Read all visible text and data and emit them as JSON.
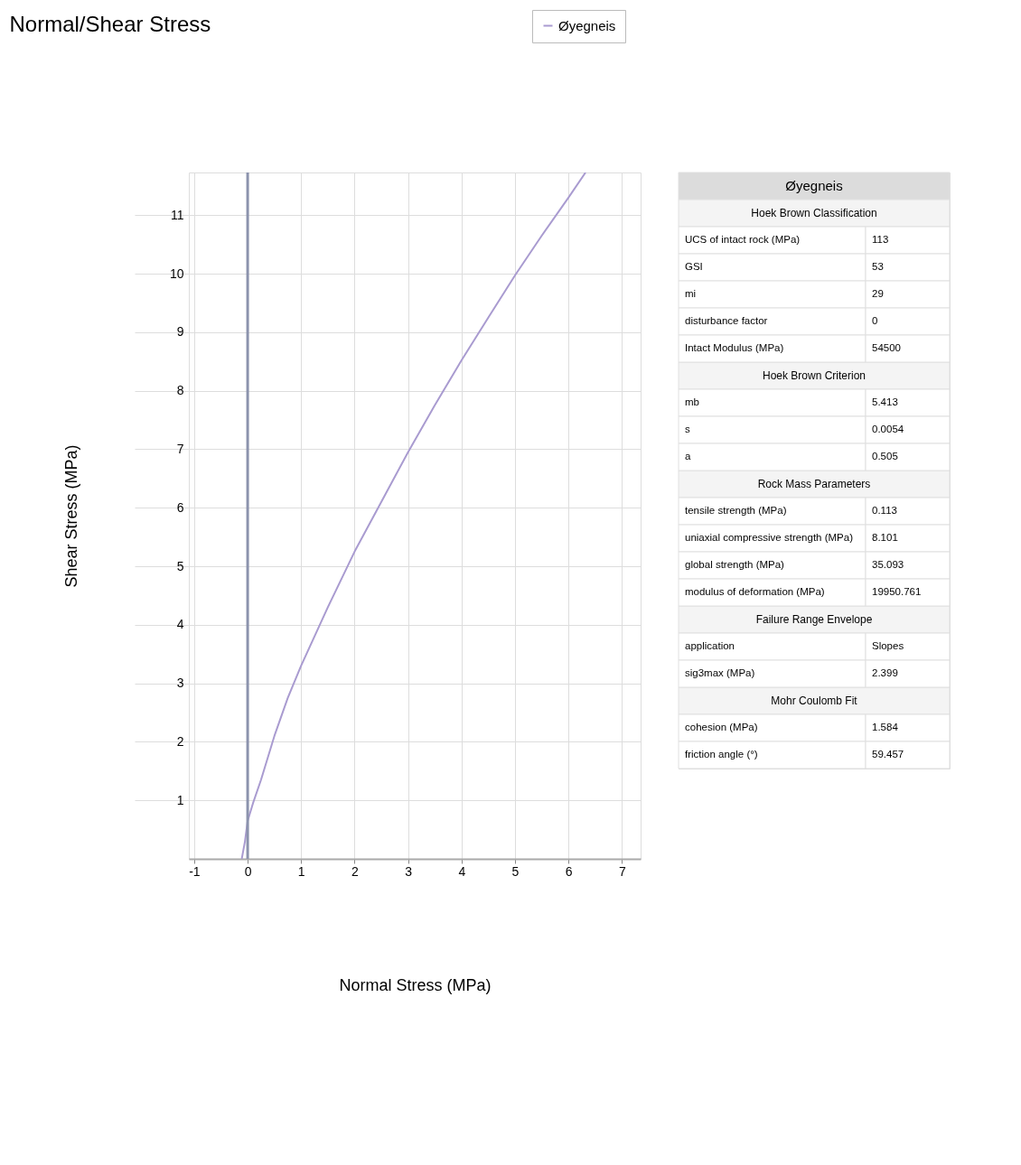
{
  "chart_data": [
    {
      "type": "line",
      "title": "Normal/Shear Stress",
      "xlabel": "Normal Stress (MPa)",
      "ylabel": "Shear Stress (MPa)",
      "x": [
        -0.11,
        -0.05,
        0,
        0.1,
        0.25,
        0.5,
        0.75,
        1,
        1.5,
        2,
        2.5,
        3,
        3.5,
        4,
        4.5,
        5,
        5.5,
        6,
        6.32
      ],
      "series": [
        {
          "name": "Øyegneis",
          "color": "#a99bd0",
          "values": [
            0,
            0.3,
            0.65,
            0.95,
            1.35,
            2.1,
            2.75,
            3.3,
            4.3,
            5.25,
            6.1,
            6.95,
            7.75,
            8.52,
            9.25,
            9.97,
            10.65,
            11.3,
            11.73
          ]
        }
      ],
      "xlim": [
        -1.1,
        7.35
      ],
      "ylim": [
        0,
        11.73
      ],
      "xticks": [
        -1,
        0,
        1,
        2,
        3,
        4,
        5,
        6,
        7
      ],
      "yticks": [
        1,
        2,
        3,
        4,
        5,
        6,
        7,
        8,
        9,
        10,
        11
      ],
      "ref_lines": [
        {
          "axis": "x",
          "value": 0,
          "color": "#8c93ad"
        }
      ],
      "grid": true,
      "legend": "top right",
      "marker": "none",
      "line_style": "solid"
    },
    {
      "type": "other",
      "title": "Øyegneis",
      "annotations": [
        "Hoek Brown Classification",
        "UCS of intact rock (MPa)",
        "113",
        "GSI",
        "53",
        "mi",
        "29",
        "disturbance factor",
        "0",
        "Intact Modulus (MPa)",
        "54500",
        "Hoek Brown Criterion",
        "mb",
        "5.413",
        "s",
        "0.0054",
        "a",
        "0.505",
        "Rock Mass Parameters",
        "tensile strength (MPa)",
        "0.113",
        "uniaxial compressive strength (MPa)",
        "8.101",
        "global strength (MPa)",
        "35.093",
        "modulus of deformation (MPa)",
        "19950.761",
        "Failure Range Envelope",
        "application",
        "Slopes",
        "sig3max (MPa)",
        "2.399",
        "Mohr Coulomb Fit",
        "cohesion (MPa)",
        "1.584",
        "friction angle (°)",
        "59.457"
      ]
    }
  ]
}
